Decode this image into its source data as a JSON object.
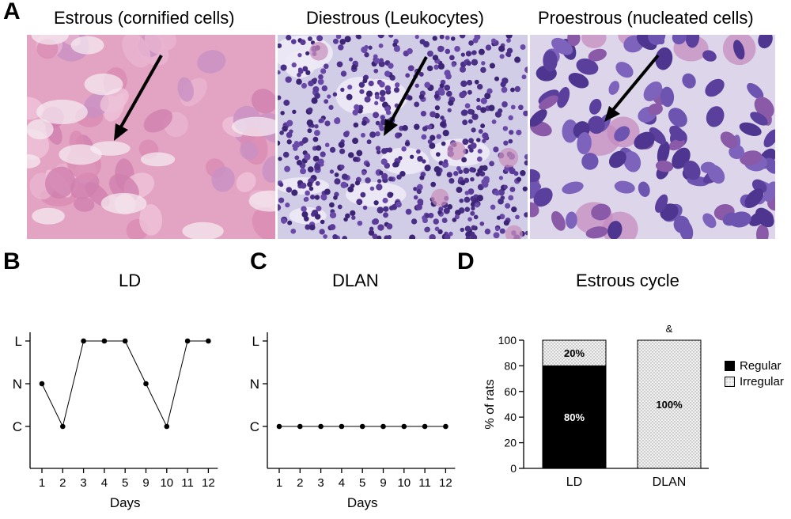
{
  "panel_a": {
    "letter": "A",
    "images": [
      {
        "title": "Estrous (cornified cells)"
      },
      {
        "title": "Diestrous (Leukocytes)"
      },
      {
        "title": "Proestrous (nucleated cells)"
      }
    ]
  },
  "panel_b": {
    "letter": "B",
    "title": "LD"
  },
  "panel_c": {
    "letter": "C",
    "title": "DLAN"
  },
  "panel_d": {
    "letter": "D",
    "title": "Estrous cycle"
  },
  "chart_data": [
    {
      "type": "line",
      "title": "LD",
      "xlabel": "Days",
      "categories": [
        "1",
        "2",
        "3",
        "4",
        "5",
        "9",
        "10",
        "11",
        "12"
      ],
      "y_categories": [
        "C",
        "N",
        "L"
      ],
      "values": [
        "N",
        "C",
        "L",
        "L",
        "L",
        "N",
        "C",
        "L",
        "L"
      ]
    },
    {
      "type": "line",
      "title": "DLAN",
      "xlabel": "Days",
      "categories": [
        "1",
        "2",
        "3",
        "4",
        "5",
        "9",
        "10",
        "11",
        "12"
      ],
      "y_categories": [
        "C",
        "N",
        "L"
      ],
      "values": [
        "C",
        "C",
        "C",
        "C",
        "C",
        "C",
        "C",
        "C",
        "C"
      ]
    },
    {
      "type": "bar",
      "stacked": true,
      "title": "Estrous cycle",
      "ylabel": "% of rats",
      "ylim": [
        0,
        100
      ],
      "yticks": [
        "0",
        "20",
        "40",
        "60",
        "80",
        "100"
      ],
      "categories": [
        "LD",
        "DLAN"
      ],
      "series": [
        {
          "name": "Regular",
          "values": [
            80,
            0
          ],
          "labels": [
            "80%",
            ""
          ],
          "color": "#000000"
        },
        {
          "name": "Irregular",
          "values": [
            20,
            100
          ],
          "labels": [
            "20%",
            "100%"
          ],
          "color": "#e8e8e8"
        }
      ],
      "annotations": [
        {
          "category": "DLAN",
          "text": "&"
        }
      ],
      "legend_position": "right"
    }
  ]
}
